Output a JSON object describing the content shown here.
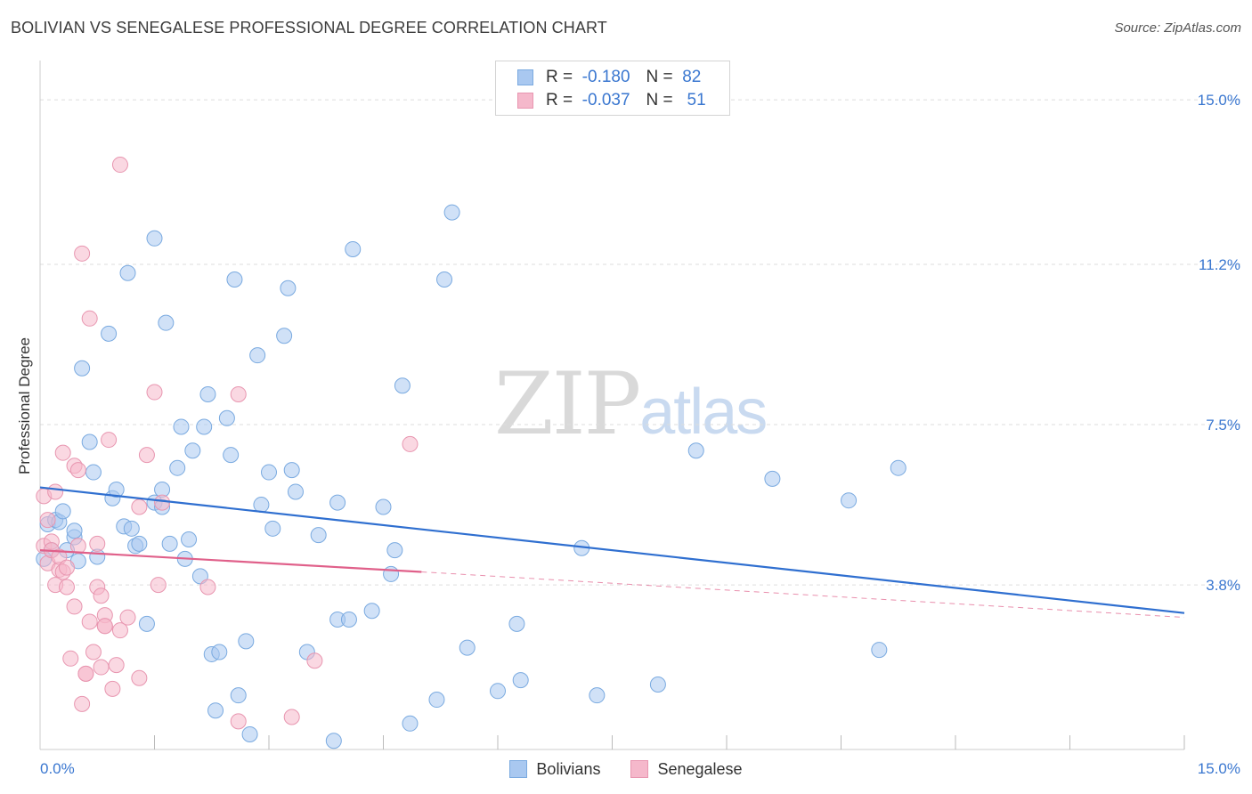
{
  "header": {
    "title": "BOLIVIAN VS SENEGALESE PROFESSIONAL DEGREE CORRELATION CHART",
    "source": "Source: ZipAtlas.com"
  },
  "watermark": {
    "zip": "ZIP",
    "atlas": "atlas"
  },
  "legend": {
    "rows": [
      {
        "r_label": "R =",
        "r_value": "-0.180",
        "n_label": "N =",
        "n_value": "82",
        "color": "#a9c8f0"
      },
      {
        "r_label": "R =",
        "r_value": "-0.037",
        "n_label": "N =",
        "n_value": "51",
        "color": "#f5b8cb"
      }
    ]
  },
  "bottom_legend": {
    "items": [
      {
        "label": "Bolivians",
        "color": "#a9c8f0"
      },
      {
        "label": "Senegalese",
        "color": "#f5b8cb"
      }
    ]
  },
  "colors": {
    "blue_fill": "#a9c8f0",
    "blue_stroke": "#7aaae0",
    "blue_line": "#2f6fd0",
    "pink_fill": "#f5b8cb",
    "pink_stroke": "#e896b0",
    "pink_line": "#e0608a",
    "grid": "#dddddd",
    "tick_label": "#3a77d0"
  },
  "chart_data": {
    "type": "scatter",
    "title": "BOLIVIAN VS SENEGALESE PROFESSIONAL DEGREE CORRELATION CHART",
    "xlabel": "",
    "ylabel": "Professional Degree",
    "xlim": [
      0,
      15
    ],
    "ylim": [
      0,
      15.7
    ],
    "x_tick_labels": [
      {
        "value": 0,
        "label": "0.0%"
      },
      {
        "value": 15,
        "label": "15.0%"
      }
    ],
    "y_tick_labels": [
      {
        "value": 3.8,
        "label": "3.8%"
      },
      {
        "value": 7.5,
        "label": "7.5%"
      },
      {
        "value": 11.2,
        "label": "11.2%"
      },
      {
        "value": 15.0,
        "label": "15.0%"
      }
    ],
    "x_minor_ticks": [
      1.5,
      3.0,
      4.5,
      6.0,
      7.5,
      9.0,
      10.5,
      12.0,
      13.5,
      15.0
    ],
    "series": [
      {
        "name": "Bolivians",
        "r": -0.18,
        "n": 82,
        "trend": {
          "x0": 0.0,
          "y0": 6.05,
          "x1": 15.0,
          "y1": 3.15
        },
        "points": [
          [
            0.1,
            5.2
          ],
          [
            0.15,
            4.6
          ],
          [
            0.2,
            5.3
          ],
          [
            0.25,
            5.25
          ],
          [
            0.3,
            5.5
          ],
          [
            0.35,
            4.6
          ],
          [
            0.45,
            4.9
          ],
          [
            0.5,
            4.35
          ],
          [
            0.55,
            8.8
          ],
          [
            0.65,
            7.1
          ],
          [
            0.7,
            6.4
          ],
          [
            0.75,
            4.45
          ],
          [
            0.9,
            9.6
          ],
          [
            0.95,
            5.8
          ],
          [
            1.0,
            6.0
          ],
          [
            1.1,
            5.15
          ],
          [
            1.15,
            11.0
          ],
          [
            1.2,
            5.1
          ],
          [
            1.25,
            4.7
          ],
          [
            1.3,
            4.75
          ],
          [
            1.4,
            2.9
          ],
          [
            1.5,
            5.7
          ],
          [
            1.5,
            11.8
          ],
          [
            1.6,
            6.0
          ],
          [
            1.6,
            5.6
          ],
          [
            1.65,
            9.85
          ],
          [
            1.7,
            4.75
          ],
          [
            1.8,
            6.5
          ],
          [
            1.85,
            7.45
          ],
          [
            1.9,
            4.4
          ],
          [
            1.95,
            4.85
          ],
          [
            2.0,
            6.9
          ],
          [
            2.1,
            4.0
          ],
          [
            2.15,
            7.45
          ],
          [
            2.2,
            8.2
          ],
          [
            2.25,
            2.2
          ],
          [
            2.3,
            0.9
          ],
          [
            2.35,
            2.25
          ],
          [
            2.45,
            7.65
          ],
          [
            2.5,
            6.8
          ],
          [
            2.55,
            10.85
          ],
          [
            2.6,
            1.25
          ],
          [
            2.7,
            2.5
          ],
          [
            2.75,
            0.35
          ],
          [
            2.85,
            9.1
          ],
          [
            2.9,
            5.65
          ],
          [
            3.0,
            6.4
          ],
          [
            3.05,
            5.1
          ],
          [
            3.2,
            9.55
          ],
          [
            3.25,
            10.65
          ],
          [
            3.3,
            6.45
          ],
          [
            3.35,
            5.95
          ],
          [
            3.5,
            2.25
          ],
          [
            3.65,
            4.95
          ],
          [
            3.85,
            0.2
          ],
          [
            3.9,
            5.7
          ],
          [
            3.9,
            3.0
          ],
          [
            4.05,
            3.0
          ],
          [
            4.1,
            11.55
          ],
          [
            4.35,
            3.2
          ],
          [
            4.5,
            5.6
          ],
          [
            4.6,
            4.05
          ],
          [
            4.65,
            4.6
          ],
          [
            4.75,
            8.4
          ],
          [
            4.85,
            0.6
          ],
          [
            5.2,
            1.15
          ],
          [
            5.3,
            10.85
          ],
          [
            5.4,
            12.4
          ],
          [
            5.6,
            2.35
          ],
          [
            6.0,
            1.35
          ],
          [
            6.25,
            2.9
          ],
          [
            6.3,
            1.6
          ],
          [
            7.1,
            4.65
          ],
          [
            7.3,
            1.25
          ],
          [
            8.1,
            1.5
          ],
          [
            8.6,
            6.9
          ],
          [
            9.6,
            6.25
          ],
          [
            10.6,
            5.75
          ],
          [
            11.0,
            2.3
          ],
          [
            11.25,
            6.5
          ],
          [
            0.05,
            4.4
          ],
          [
            0.45,
            5.05
          ]
        ]
      },
      {
        "name": "Senegalese",
        "r": -0.037,
        "n": 51,
        "trend": {
          "x0": 0.0,
          "y0": 4.6,
          "x1": 5.0,
          "y1": 4.1
        },
        "trend_dashed": {
          "x0": 5.0,
          "y0": 4.1,
          "x1": 15.0,
          "y1": 3.05
        },
        "points": [
          [
            0.05,
            5.85
          ],
          [
            0.05,
            4.7
          ],
          [
            0.1,
            5.3
          ],
          [
            0.1,
            4.3
          ],
          [
            0.15,
            4.8
          ],
          [
            0.15,
            4.6
          ],
          [
            0.2,
            3.8
          ],
          [
            0.2,
            5.95
          ],
          [
            0.25,
            4.15
          ],
          [
            0.25,
            4.45
          ],
          [
            0.3,
            4.1
          ],
          [
            0.3,
            6.85
          ],
          [
            0.35,
            4.2
          ],
          [
            0.35,
            3.75
          ],
          [
            0.4,
            2.1
          ],
          [
            0.45,
            3.3
          ],
          [
            0.45,
            6.55
          ],
          [
            0.5,
            6.45
          ],
          [
            0.5,
            4.7
          ],
          [
            0.55,
            1.05
          ],
          [
            0.55,
            11.45
          ],
          [
            0.6,
            1.75
          ],
          [
            0.6,
            1.75
          ],
          [
            0.65,
            9.95
          ],
          [
            0.65,
            2.95
          ],
          [
            0.7,
            2.25
          ],
          [
            0.75,
            4.75
          ],
          [
            0.75,
            3.75
          ],
          [
            0.8,
            1.9
          ],
          [
            0.8,
            3.55
          ],
          [
            0.85,
            3.1
          ],
          [
            0.85,
            2.85
          ],
          [
            0.85,
            2.85
          ],
          [
            0.9,
            7.15
          ],
          [
            0.95,
            1.4
          ],
          [
            1.0,
            1.95
          ],
          [
            1.05,
            2.75
          ],
          [
            1.15,
            3.05
          ],
          [
            1.3,
            1.65
          ],
          [
            1.3,
            5.6
          ],
          [
            1.4,
            6.8
          ],
          [
            1.5,
            8.25
          ],
          [
            1.55,
            3.8
          ],
          [
            1.6,
            5.7
          ],
          [
            2.2,
            3.75
          ],
          [
            2.6,
            0.65
          ],
          [
            2.6,
            8.2
          ],
          [
            3.3,
            0.75
          ],
          [
            3.6,
            2.05
          ],
          [
            4.85,
            7.05
          ],
          [
            1.05,
            13.5
          ]
        ]
      }
    ]
  }
}
